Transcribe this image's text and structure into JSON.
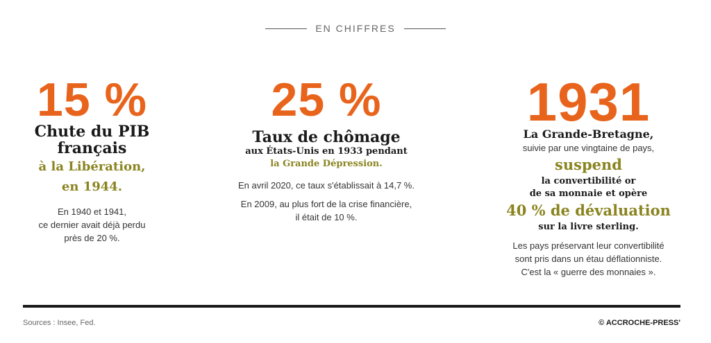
{
  "header": {
    "label": "EN CHIFFRES"
  },
  "col1": {
    "big": "15 %",
    "title1": "Chute du PIB",
    "title2": "français",
    "sub1": "à la Libération,",
    "sub2": "en 1944.",
    "body1": "En 1940 et 1941,",
    "body2": "ce dernier avait déjà perdu",
    "body3": "près de 20 %."
  },
  "col2": {
    "big": "25 %",
    "title": "Taux de chômage",
    "sub1": "aux États-Unis en 1933 pendant",
    "sub2": "la Grande Dépression.",
    "body1": "En avril 2020, ce taux s'établissait à 14,7 %.",
    "body2": "En 2009, au plus fort de la crise financière,",
    "body3": "il était de 10 %."
  },
  "col3": {
    "big": "1931",
    "title": "La Grande-Bretagne,",
    "line1": "suivie par une vingtaine de pays,",
    "suspend": "suspend",
    "line2": "la convertibilité or",
    "line3": "de sa monnaie et opère",
    "deval": "40 % de dévaluation",
    "line4": "sur la livre sterling.",
    "body1": "Les pays préservant leur convertibilité",
    "body2": "sont pris dans un étau déflationniste.",
    "body3": "C'est la « guerre des monnaies »."
  },
  "footer": {
    "sources": "Sources : Insee, Fed.",
    "copyright": "© ACCROCHE-PRESS'"
  },
  "colors": {
    "accent": "#e8641c",
    "olive": "#8a8420",
    "dark": "#1a1a1a"
  }
}
